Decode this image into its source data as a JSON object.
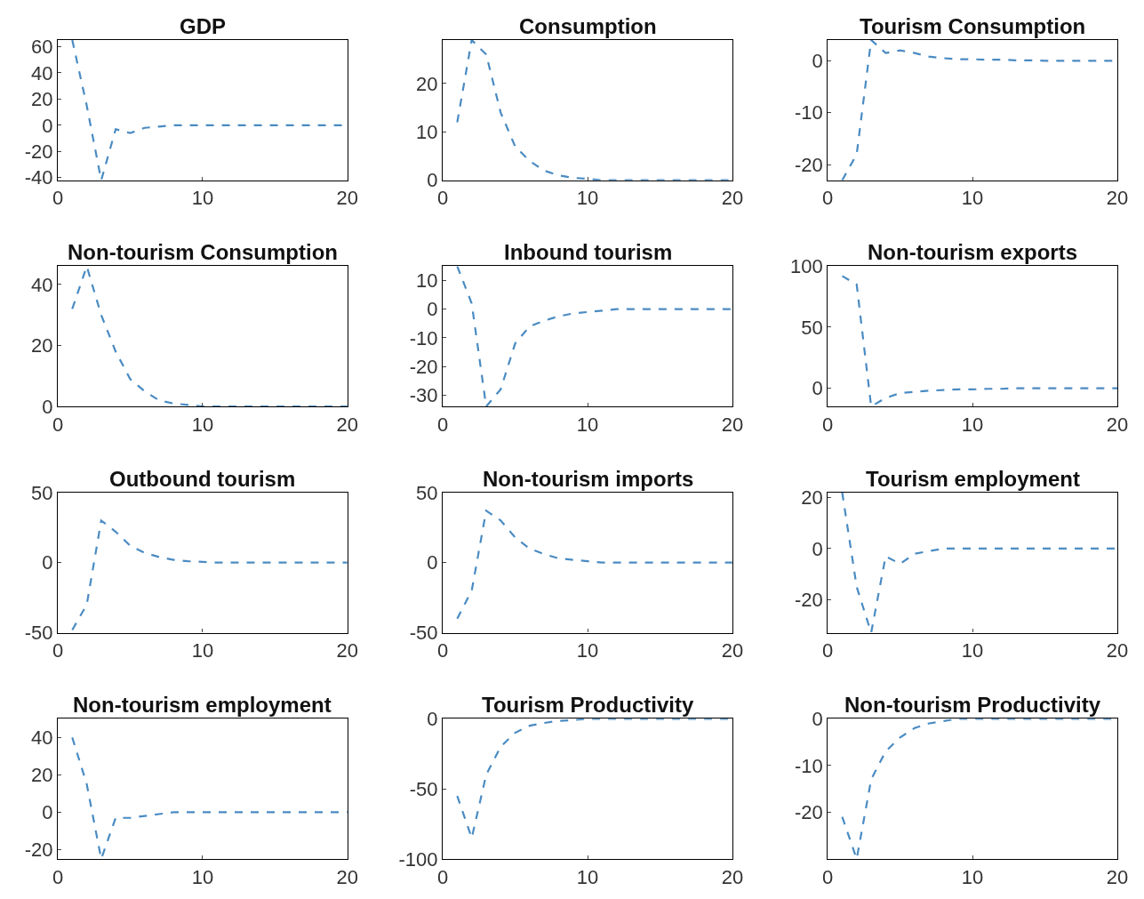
{
  "chart_data": [
    {
      "type": "line",
      "title": "GDP",
      "x": [
        1,
        2,
        3,
        4,
        5,
        6,
        7,
        8,
        9,
        10,
        11,
        12,
        13,
        14,
        15,
        16,
        17,
        18,
        19,
        20
      ],
      "series": [
        {
          "color": "#4a8bc2",
          "values": [
            65,
            15,
            -42,
            -3,
            -6,
            -2,
            -1,
            0,
            0,
            0,
            0,
            0,
            0,
            0,
            0,
            0,
            0,
            0,
            0,
            0
          ]
        }
      ],
      "xlim": [
        0,
        20
      ],
      "xticks": [
        0,
        10,
        20
      ],
      "ylim": [
        -42,
        65
      ],
      "yticks": [
        -40,
        -20,
        0,
        20,
        40,
        60
      ],
      "line_style": "dashed"
    },
    {
      "type": "line",
      "title": "Consumption",
      "x": [
        1,
        2,
        3,
        4,
        5,
        6,
        7,
        8,
        9,
        10,
        11,
        12,
        13,
        14,
        15,
        16,
        17,
        18,
        19,
        20
      ],
      "series": [
        {
          "color": "#4a8bc2",
          "values": [
            12,
            29,
            26,
            14,
            7,
            4,
            2,
            1,
            0.5,
            0.3,
            0,
            0,
            0,
            0,
            0,
            0,
            0,
            0,
            0,
            0
          ]
        }
      ],
      "xlim": [
        0,
        20
      ],
      "xticks": [
        0,
        10,
        20
      ],
      "ylim": [
        0,
        29
      ],
      "yticks": [
        0,
        10,
        20
      ],
      "line_style": "dashed"
    },
    {
      "type": "line",
      "title": "Tourism Consumption",
      "x": [
        1,
        2,
        3,
        4,
        5,
        6,
        7,
        8,
        9,
        10,
        11,
        12,
        13,
        14,
        15,
        16,
        17,
        18,
        19,
        20
      ],
      "series": [
        {
          "color": "#4a8bc2",
          "values": [
            -23,
            -18,
            4,
            1.5,
            2,
            1.5,
            0.8,
            0.5,
            0.3,
            0.3,
            0.2,
            0.2,
            0.1,
            0.1,
            0,
            0,
            0,
            0,
            0,
            0
          ]
        }
      ],
      "xlim": [
        0,
        20
      ],
      "xticks": [
        0,
        10,
        20
      ],
      "ylim": [
        -23,
        4
      ],
      "yticks": [
        -20,
        -10,
        0
      ],
      "line_style": "dashed"
    },
    {
      "type": "line",
      "title": "Non-tourism Consumption",
      "x": [
        1,
        2,
        3,
        4,
        5,
        6,
        7,
        8,
        9,
        10,
        11,
        12,
        13,
        14,
        15,
        16,
        17,
        18,
        19,
        20
      ],
      "series": [
        {
          "color": "#4a8bc2",
          "values": [
            32,
            46,
            30,
            18,
            9,
            5,
            2,
            1,
            0.5,
            0,
            0,
            0,
            0,
            0,
            0,
            0,
            0,
            0,
            0,
            0
          ]
        }
      ],
      "xlim": [
        0,
        20
      ],
      "xticks": [
        0,
        10,
        20
      ],
      "ylim": [
        0,
        46
      ],
      "yticks": [
        0,
        20,
        40
      ],
      "line_style": "dashed"
    },
    {
      "type": "line",
      "title": "Inbound tourism",
      "x": [
        1,
        2,
        3,
        4,
        5,
        6,
        7,
        8,
        9,
        10,
        11,
        12,
        13,
        14,
        15,
        16,
        17,
        18,
        19,
        20
      ],
      "series": [
        {
          "color": "#4a8bc2",
          "values": [
            15,
            2,
            -34,
            -28,
            -12,
            -6,
            -4,
            -2.5,
            -1.5,
            -1,
            -0.5,
            0,
            0,
            0,
            0,
            0,
            0,
            0,
            0,
            0
          ]
        }
      ],
      "xlim": [
        0,
        20
      ],
      "xticks": [
        0,
        10,
        20
      ],
      "ylim": [
        -34,
        15
      ],
      "yticks": [
        -30,
        -20,
        -10,
        0,
        10
      ],
      "line_style": "dashed"
    },
    {
      "type": "line",
      "title": "Non-tourism exports",
      "x": [
        1,
        2,
        3,
        4,
        5,
        6,
        7,
        8,
        9,
        10,
        11,
        12,
        13,
        14,
        15,
        16,
        17,
        18,
        19,
        20
      ],
      "series": [
        {
          "color": "#4a8bc2",
          "values": [
            92,
            85,
            -15,
            -8,
            -4,
            -3,
            -2,
            -1.5,
            -1,
            -1,
            -0.5,
            -0.5,
            0,
            0,
            0,
            0,
            0,
            0,
            0,
            0
          ]
        }
      ],
      "xlim": [
        0,
        20
      ],
      "xticks": [
        0,
        10,
        20
      ],
      "ylim": [
        -15,
        100
      ],
      "yticks": [
        0,
        50,
        100
      ],
      "line_style": "dashed"
    },
    {
      "type": "line",
      "title": "Outbound tourism",
      "x": [
        1,
        2,
        3,
        4,
        5,
        6,
        7,
        8,
        9,
        10,
        11,
        12,
        13,
        14,
        15,
        16,
        17,
        18,
        19,
        20
      ],
      "series": [
        {
          "color": "#4a8bc2",
          "values": [
            -48,
            -30,
            30,
            22,
            12,
            7,
            4,
            2,
            1,
            0.5,
            0,
            0,
            0,
            0,
            0,
            0,
            0,
            0,
            0,
            0
          ]
        }
      ],
      "xlim": [
        0,
        20
      ],
      "xticks": [
        0,
        10,
        20
      ],
      "ylim": [
        -50,
        50
      ],
      "yticks": [
        -50,
        0,
        50
      ],
      "line_style": "dashed"
    },
    {
      "type": "line",
      "title": "Non-tourism imports",
      "x": [
        1,
        2,
        3,
        4,
        5,
        6,
        7,
        8,
        9,
        10,
        11,
        12,
        13,
        14,
        15,
        16,
        17,
        18,
        19,
        20
      ],
      "series": [
        {
          "color": "#4a8bc2",
          "values": [
            -40,
            -20,
            37,
            30,
            18,
            10,
            6,
            3,
            2,
            1,
            0,
            0,
            0,
            0,
            0,
            0,
            0,
            0,
            0,
            0
          ]
        }
      ],
      "xlim": [
        0,
        20
      ],
      "xticks": [
        0,
        10,
        20
      ],
      "ylim": [
        -50,
        50
      ],
      "yticks": [
        -50,
        0,
        50
      ],
      "line_style": "dashed"
    },
    {
      "type": "line",
      "title": "Tourism employment",
      "x": [
        1,
        2,
        3,
        4,
        5,
        6,
        7,
        8,
        9,
        10,
        11,
        12,
        13,
        14,
        15,
        16,
        17,
        18,
        19,
        20
      ],
      "series": [
        {
          "color": "#4a8bc2",
          "values": [
            22,
            -15,
            -33,
            -3,
            -6,
            -2,
            -1,
            0,
            0,
            0,
            0,
            0,
            0,
            0,
            0,
            0,
            0,
            0,
            0,
            0
          ]
        }
      ],
      "xlim": [
        0,
        20
      ],
      "xticks": [
        0,
        10,
        20
      ],
      "ylim": [
        -33,
        22
      ],
      "yticks": [
        -20,
        0,
        20
      ],
      "line_style": "dashed"
    },
    {
      "type": "line",
      "title": "Non-tourism employment",
      "x": [
        1,
        2,
        3,
        4,
        5,
        6,
        7,
        8,
        9,
        10,
        11,
        12,
        13,
        14,
        15,
        16,
        17,
        18,
        19,
        20
      ],
      "series": [
        {
          "color": "#4a8bc2",
          "values": [
            40,
            15,
            -25,
            -3,
            -3,
            -2,
            -1,
            0,
            0,
            0,
            0,
            0,
            0,
            0,
            0,
            0,
            0,
            0,
            0,
            0
          ]
        }
      ],
      "xlim": [
        0,
        20
      ],
      "xticks": [
        0,
        10,
        20
      ],
      "ylim": [
        -25,
        50
      ],
      "yticks": [
        -20,
        0,
        20,
        40
      ],
      "line_style": "dashed"
    },
    {
      "type": "line",
      "title": "Tourism Productivity",
      "x": [
        1,
        2,
        3,
        4,
        5,
        6,
        7,
        8,
        9,
        10,
        11,
        12,
        13,
        14,
        15,
        16,
        17,
        18,
        19,
        20
      ],
      "series": [
        {
          "color": "#4a8bc2",
          "values": [
            -55,
            -85,
            -40,
            -20,
            -10,
            -5,
            -3,
            -1.5,
            -1,
            0,
            0,
            0,
            0,
            0,
            0,
            0,
            0,
            0,
            0,
            0
          ]
        }
      ],
      "xlim": [
        0,
        20
      ],
      "xticks": [
        0,
        10,
        20
      ],
      "ylim": [
        -100,
        0
      ],
      "yticks": [
        -100,
        -50,
        0
      ],
      "line_style": "dashed"
    },
    {
      "type": "line",
      "title": "Non-tourism Productivity",
      "x": [
        1,
        2,
        3,
        4,
        5,
        6,
        7,
        8,
        9,
        10,
        11,
        12,
        13,
        14,
        15,
        16,
        17,
        18,
        19,
        20
      ],
      "series": [
        {
          "color": "#4a8bc2",
          "values": [
            -21,
            -30,
            -13,
            -7,
            -4,
            -2,
            -1,
            -0.5,
            0,
            0,
            0,
            0,
            0,
            0,
            0,
            0,
            0,
            0,
            0,
            0
          ]
        }
      ],
      "xlim": [
        0,
        20
      ],
      "xticks": [
        0,
        10,
        20
      ],
      "ylim": [
        -30,
        0
      ],
      "yticks": [
        -20,
        -10,
        0
      ],
      "line_style": "dashed"
    }
  ]
}
